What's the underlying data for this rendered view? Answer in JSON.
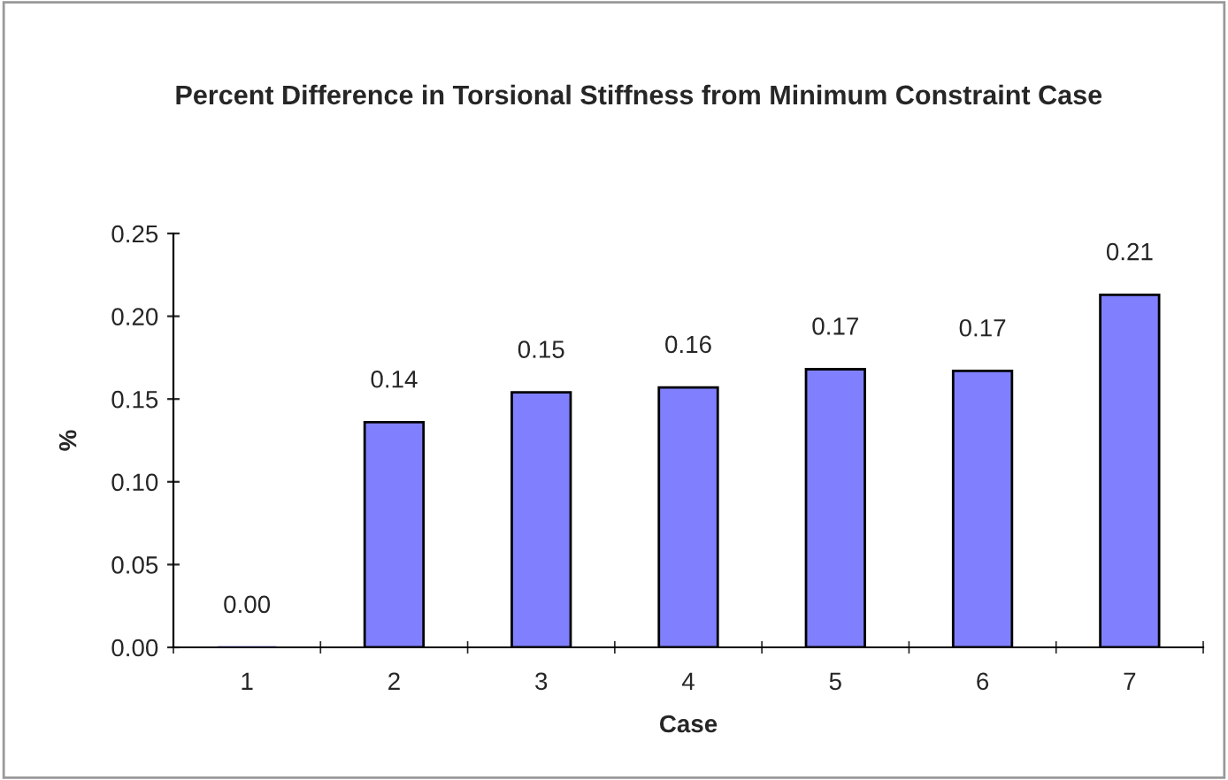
{
  "chart_data": {
    "type": "bar",
    "title": "Percent Difference in Torsional Stiffness from Minimum Constraint Case",
    "xlabel": "Case",
    "ylabel": "%",
    "categories": [
      "1",
      "2",
      "3",
      "4",
      "5",
      "6",
      "7"
    ],
    "values": [
      0,
      0.136,
      0.154,
      0.157,
      0.168,
      0.167,
      0.213
    ],
    "value_labels": [
      "0.00",
      "0.14",
      "0.15",
      "0.16",
      "0.17",
      "0.17",
      "0.21"
    ],
    "color": "#8080ff",
    "ylim": [
      0,
      0.25
    ],
    "yticks": [
      {
        "value": 0,
        "label": "0.00"
      },
      {
        "value": 0.05,
        "label": "0.05"
      },
      {
        "value": 0.1,
        "label": "0.10"
      },
      {
        "value": 0.15,
        "label": "0.15"
      },
      {
        "value": 0.2,
        "label": "0.20"
      },
      {
        "value": 0.25,
        "label": "0.25"
      }
    ],
    "grid": false,
    "legend": false
  }
}
